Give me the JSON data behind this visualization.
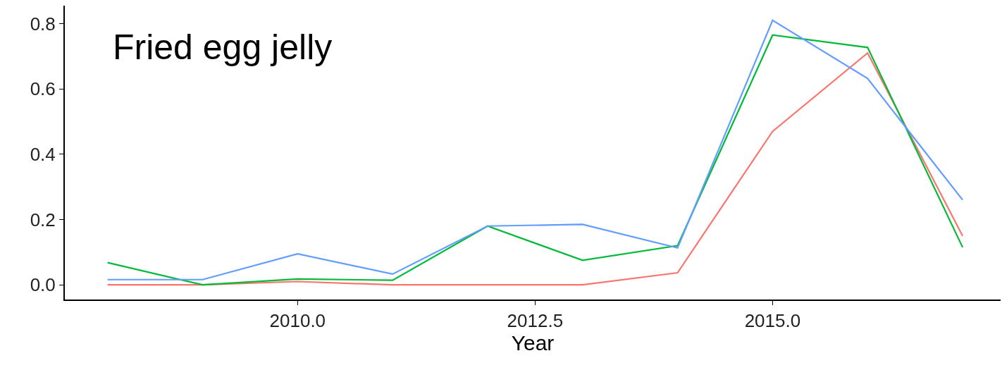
{
  "chart_data": {
    "type": "line",
    "xlabel": "Year",
    "annotations": [
      "Fried egg jelly"
    ],
    "x": [
      2008,
      2009,
      2010,
      2011,
      2012,
      2013,
      2014,
      2015,
      2016,
      2017
    ],
    "series": [
      {
        "color": "#f8766d",
        "values": [
          0.0,
          0.0,
          0.01,
          0.0,
          0.0,
          0.0,
          0.037,
          0.47,
          0.71,
          0.15
        ]
      },
      {
        "color": "#00ba38",
        "values": [
          0.068,
          0.0,
          0.018,
          0.014,
          0.18,
          0.075,
          0.12,
          0.765,
          0.727,
          0.115
        ]
      },
      {
        "color": "#619cff",
        "values": [
          0.016,
          0.016,
          0.095,
          0.033,
          0.18,
          0.185,
          0.113,
          0.81,
          0.632,
          0.26
        ]
      }
    ],
    "xlim": [
      2007.55,
      2017.4
    ],
    "xticks": [
      {
        "value": 2010,
        "label": "2010.0"
      },
      {
        "value": 2012.5,
        "label": "2012.5"
      },
      {
        "value": 2015,
        "label": "2015.0"
      }
    ],
    "ylim": [
      -0.045,
      0.855
    ],
    "yticks": [
      {
        "value": 0,
        "label": "0.0"
      },
      {
        "value": 0.2,
        "label": "0.2"
      },
      {
        "value": 0.4,
        "label": "0.4"
      },
      {
        "value": 0.6,
        "label": "0.6"
      },
      {
        "value": 0.8,
        "label": "0.8"
      }
    ],
    "marker": "none",
    "line_style": "solid"
  }
}
